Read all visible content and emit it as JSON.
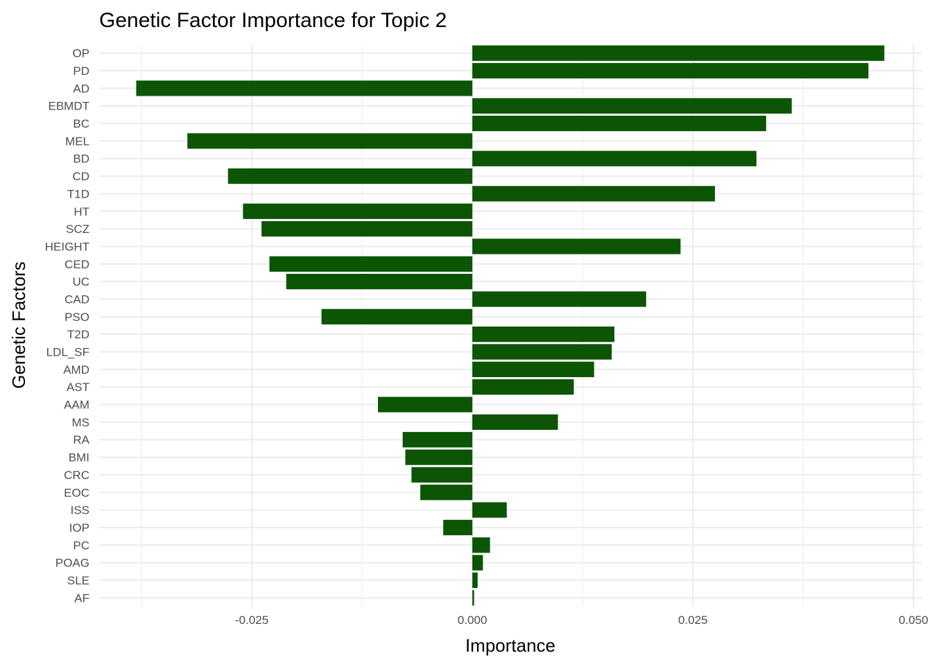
{
  "chart_data": {
    "type": "bar",
    "orientation": "horizontal",
    "title": "Genetic Factor Importance for Topic 2",
    "xlabel": "Importance",
    "ylabel": "Genetic Factors",
    "xlim": [
      -0.0423,
      0.051
    ],
    "xticks": [
      -0.025,
      0.0,
      0.025,
      0.05
    ],
    "xtick_labels": [
      "-0.025",
      "0.000",
      "0.025",
      "0.050"
    ],
    "grid": true,
    "bar_color": "#0c5504",
    "categories": [
      "OP",
      "PD",
      "AD",
      "EBMDT",
      "BC",
      "MEL",
      "BD",
      "CD",
      "T1D",
      "HT",
      "SCZ",
      "HEIGHT",
      "CED",
      "UC",
      "CAD",
      "PSO",
      "T2D",
      "LDL_SF",
      "AMD",
      "AST",
      "AAM",
      "MS",
      "RA",
      "BMI",
      "CRC",
      "EOC",
      "ISS",
      "IOP",
      "PC",
      "POAG",
      "SLE",
      "AF"
    ],
    "values": [
      0.0467,
      0.0449,
      -0.0381,
      0.0362,
      0.0333,
      -0.0323,
      0.0322,
      -0.0277,
      0.0275,
      -0.026,
      -0.0239,
      0.0236,
      -0.023,
      -0.0211,
      0.0197,
      -0.0171,
      0.0161,
      0.0158,
      0.0138,
      0.0115,
      -0.0107,
      0.0097,
      -0.0079,
      -0.0076,
      -0.0069,
      -0.0059,
      0.0039,
      -0.0033,
      0.002,
      0.0012,
      0.0006,
      0.0002
    ]
  }
}
